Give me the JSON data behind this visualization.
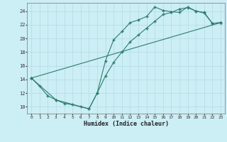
{
  "line1_x": [
    0,
    1,
    2,
    3,
    4,
    5,
    6,
    7,
    8,
    9,
    10,
    11,
    12,
    13,
    14,
    15,
    16,
    17,
    18,
    19,
    20,
    21,
    22,
    23
  ],
  "line1_y": [
    14.2,
    13.0,
    11.6,
    11.0,
    10.5,
    10.3,
    10.0,
    9.7,
    12.0,
    16.7,
    19.8,
    21.0,
    22.3,
    22.7,
    23.2,
    24.6,
    24.1,
    23.9,
    23.8,
    24.6,
    24.0,
    23.7,
    22.2,
    22.3
  ],
  "line2_x": [
    0,
    23
  ],
  "line2_y": [
    14.2,
    22.3
  ],
  "line3_x": [
    0,
    3,
    7,
    8,
    9,
    10,
    11,
    12,
    13,
    14,
    15,
    16,
    17,
    18,
    19,
    20,
    21,
    22,
    23
  ],
  "line3_y": [
    14.2,
    11.0,
    9.7,
    12.0,
    14.5,
    16.5,
    18.0,
    19.5,
    20.5,
    21.5,
    22.5,
    23.5,
    23.8,
    24.3,
    24.5,
    24.0,
    23.8,
    22.2,
    22.3
  ],
  "color": "#2e7d6e",
  "bg_color": "#cceef5",
  "grid_color": "#b8dde8",
  "xlabel": "Humidex (Indice chaleur)",
  "xlim": [
    -0.5,
    23.5
  ],
  "ylim": [
    9.0,
    25.2
  ],
  "yticks": [
    10,
    12,
    14,
    16,
    18,
    20,
    22,
    24
  ],
  "xticks": [
    0,
    1,
    2,
    3,
    4,
    5,
    6,
    7,
    8,
    9,
    10,
    11,
    12,
    13,
    14,
    15,
    16,
    17,
    18,
    19,
    20,
    21,
    22,
    23
  ]
}
